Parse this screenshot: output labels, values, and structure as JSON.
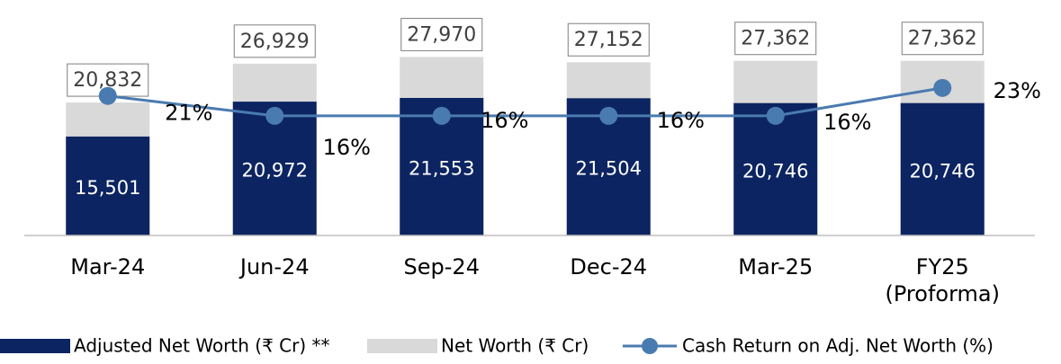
{
  "chart_data": {
    "type": "bar-line",
    "categories": [
      "Mar-24",
      "Jun-24",
      "Sep-24",
      "Dec-24",
      "Mar-25",
      "FY25 (Proforma)"
    ],
    "ylim": [
      0,
      30000
    ],
    "y2lim": [
      -14,
      34
    ],
    "series": [
      {
        "name": "Adjusted Net Worth (₹ Cr) **",
        "type": "bar",
        "color": "#0c2461",
        "values": [
          15501,
          20972,
          21553,
          21504,
          20746,
          20746
        ],
        "value_labels": [
          "15,501",
          "20,972",
          "21,553",
          "21,504",
          "20,746",
          "20,746"
        ]
      },
      {
        "name": "Net Worth (₹ Cr)",
        "type": "bar",
        "color": "#d9d9d9",
        "values": [
          20832,
          26929,
          27970,
          27152,
          27362,
          27362
        ],
        "value_labels": [
          "20,832",
          "26,929",
          "27,970",
          "27,152",
          "27,362",
          "27,362"
        ]
      },
      {
        "name": "Cash Return on Adj. Net Worth (%)",
        "type": "line",
        "axis": "y2",
        "color": "#4a7bb0",
        "values": [
          21,
          16,
          16,
          16,
          16,
          23
        ],
        "value_labels": [
          "21%",
          "16%",
          "16%",
          "16%",
          "16%",
          "23%"
        ]
      }
    ]
  }
}
